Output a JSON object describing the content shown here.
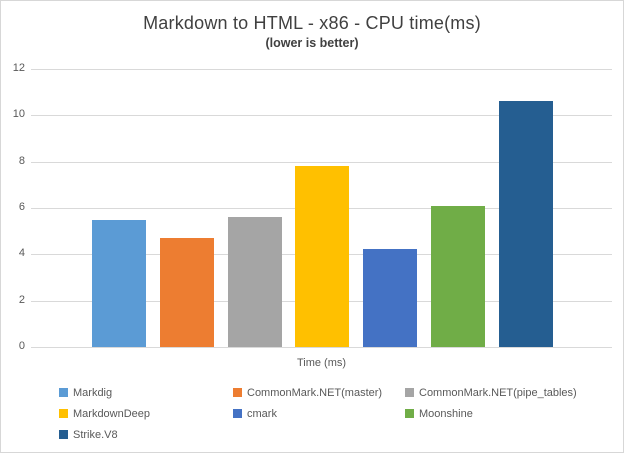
{
  "chart_data": {
    "type": "bar",
    "title": "Markdown to HTML - x86 - CPU time(ms)",
    "subtitle": "(lower is better)",
    "xlabel": "Time (ms)",
    "ylabel": "",
    "ylim": [
      0,
      12
    ],
    "yticks": [
      0,
      2,
      4,
      6,
      8,
      10,
      12
    ],
    "grid": true,
    "legend_position": "bottom",
    "series": [
      {
        "name": "Markdig",
        "value": 5.5,
        "color": "#5B9BD5"
      },
      {
        "name": "CommonMark.NET(master)",
        "value": 4.7,
        "color": "#ED7D31"
      },
      {
        "name": "CommonMark.NET(pipe_tables)",
        "value": 5.6,
        "color": "#A5A5A5"
      },
      {
        "name": "MarkdownDeep",
        "value": 7.8,
        "color": "#FFC000"
      },
      {
        "name": "cmark",
        "value": 4.25,
        "color": "#4472C4"
      },
      {
        "name": "Moonshine",
        "value": 6.1,
        "color": "#70AD47"
      },
      {
        "name": "Strike.V8",
        "value": 10.6,
        "color": "#255E91"
      }
    ]
  },
  "colors": {
    "gridline": "#D9D9D9",
    "border": "#D7D7D7",
    "title_text": "#404040",
    "axis_text": "#595959",
    "background": "#FFFFFF"
  }
}
